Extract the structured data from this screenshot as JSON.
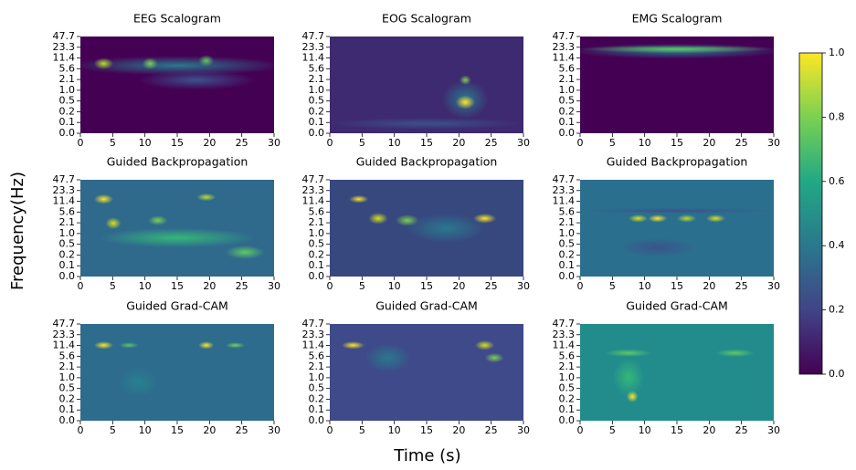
{
  "chart_data": [
    {
      "type": "heatmap",
      "title": "EEG Scalogram",
      "xlim": [
        0,
        30
      ],
      "xticks": [
        0,
        5,
        10,
        15,
        20,
        25,
        30
      ],
      "y_categories": [
        "0.0",
        "0.1",
        "0.2",
        "0.5",
        "1.0",
        "2.1",
        "5.6",
        "11.4",
        "23.3",
        "47.7"
      ]
    },
    {
      "type": "heatmap",
      "title": "EOG Scalogram",
      "xlim": [
        0,
        30
      ],
      "xticks": [
        0,
        5,
        10,
        15,
        20,
        25,
        30
      ],
      "y_categories": [
        "0.0",
        "0.1",
        "0.2",
        "0.5",
        "1.0",
        "2.1",
        "5.6",
        "11.4",
        "23.3",
        "47.7"
      ]
    },
    {
      "type": "heatmap",
      "title": "EMG Scalogram",
      "xlim": [
        0,
        30
      ],
      "xticks": [
        0,
        5,
        10,
        15,
        20,
        25,
        30
      ],
      "y_categories": [
        "0.0",
        "0.1",
        "0.2",
        "0.5",
        "1.0",
        "2.1",
        "5.6",
        "11.4",
        "23.3",
        "47.7"
      ]
    },
    {
      "type": "heatmap",
      "title": "Guided Backpropagation",
      "xlim": [
        0,
        30
      ],
      "xticks": [
        0,
        5,
        10,
        15,
        20,
        25,
        30
      ],
      "y_categories": [
        "0.0",
        "0.1",
        "0.2",
        "0.5",
        "1.0",
        "2.1",
        "5.6",
        "11.4",
        "23.3",
        "47.7"
      ]
    },
    {
      "type": "heatmap",
      "title": "Guided Backpropagation",
      "xlim": [
        0,
        30
      ],
      "xticks": [
        0,
        5,
        10,
        15,
        20,
        25,
        30
      ],
      "y_categories": [
        "0.0",
        "0.1",
        "0.2",
        "0.5",
        "1.0",
        "2.1",
        "5.6",
        "11.4",
        "23.3",
        "47.7"
      ]
    },
    {
      "type": "heatmap",
      "title": "Guided Backpropagation",
      "xlim": [
        0,
        30
      ],
      "xticks": [
        0,
        5,
        10,
        15,
        20,
        25,
        30
      ],
      "y_categories": [
        "0.0",
        "0.1",
        "0.2",
        "0.5",
        "1.0",
        "2.1",
        "5.6",
        "11.4",
        "23.3",
        "47.7"
      ]
    },
    {
      "type": "heatmap",
      "title": "Guided Grad-CAM",
      "xlim": [
        0,
        30
      ],
      "xticks": [
        0,
        5,
        10,
        15,
        20,
        25,
        30
      ],
      "y_categories": [
        "0.0",
        "0.1",
        "0.2",
        "0.5",
        "1.0",
        "2.1",
        "5.6",
        "11.4",
        "23.3",
        "47.7"
      ]
    },
    {
      "type": "heatmap",
      "title": "Guided Grad-CAM",
      "xlim": [
        0,
        30
      ],
      "xticks": [
        0,
        5,
        10,
        15,
        20,
        25,
        30
      ],
      "y_categories": [
        "0.0",
        "0.1",
        "0.2",
        "0.5",
        "1.0",
        "2.1",
        "5.6",
        "11.4",
        "23.3",
        "47.7"
      ]
    },
    {
      "type": "heatmap",
      "title": "Guided Grad-CAM",
      "xlim": [
        0,
        30
      ],
      "xticks": [
        0,
        5,
        10,
        15,
        20,
        25,
        30
      ],
      "y_categories": [
        "0.0",
        "0.1",
        "0.2",
        "0.5",
        "1.0",
        "2.1",
        "5.6",
        "11.4",
        "23.3",
        "47.7"
      ]
    }
  ],
  "figure": {
    "xlabel": "Time (s)",
    "ylabel": "Frequency(Hz)",
    "colorbar": {
      "lim": [
        0,
        1
      ],
      "ticks": [
        {
          "value": 0,
          "label": "0.0"
        },
        {
          "value": 0.2,
          "label": "0.2"
        },
        {
          "value": 0.4,
          "label": "0.4"
        },
        {
          "value": 0.6,
          "label": "0.6"
        },
        {
          "value": 0.8,
          "label": "0.8"
        },
        {
          "value": 1,
          "label": "1.0"
        }
      ],
      "colors": [
        "#440154",
        "#414487",
        "#2a788e",
        "#22a884",
        "#7ad151",
        "#fde725"
      ]
    }
  }
}
